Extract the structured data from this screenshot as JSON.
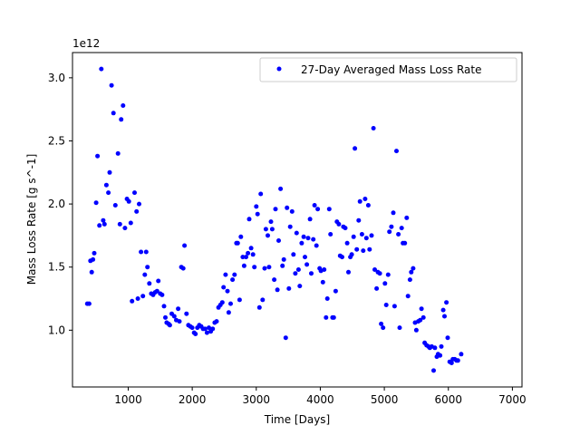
{
  "chart_data": {
    "type": "scatter",
    "xlabel": "Time [Days]",
    "ylabel": "Mass Loss Rate [g s^-1]",
    "y_offset_label": "1e12",
    "xlim": [
      130,
      7150
    ],
    "ylim": [
      0.55,
      3.2
    ],
    "xticks": [
      1000,
      2000,
      3000,
      4000,
      5000,
      6000,
      7000
    ],
    "xtick_labels": [
      "1000",
      "2000",
      "3000",
      "4000",
      "5000",
      "6000",
      "7000"
    ],
    "yticks": [
      1.0,
      1.5,
      2.0,
      2.5,
      3.0
    ],
    "ytick_labels": [
      "1.0",
      "1.5",
      "2.0",
      "2.5",
      "3.0"
    ],
    "grid": false,
    "legend_position": "upper-right",
    "series": [
      {
        "name": "27-Day Averaged Mass Loss Rate",
        "color": "#0000ff",
        "marker": "circle",
        "points": [
          [
            360,
            1.21
          ],
          [
            390,
            1.21
          ],
          [
            410,
            1.55
          ],
          [
            430,
            1.46
          ],
          [
            450,
            1.56
          ],
          [
            470,
            1.61
          ],
          [
            500,
            2.01
          ],
          [
            520,
            2.38
          ],
          [
            550,
            1.83
          ],
          [
            580,
            3.07
          ],
          [
            610,
            1.87
          ],
          [
            630,
            1.84
          ],
          [
            660,
            2.15
          ],
          [
            690,
            2.09
          ],
          [
            710,
            2.25
          ],
          [
            740,
            2.94
          ],
          [
            770,
            2.72
          ],
          [
            800,
            1.99
          ],
          [
            840,
            2.4
          ],
          [
            870,
            1.84
          ],
          [
            890,
            2.67
          ],
          [
            920,
            2.78
          ],
          [
            950,
            1.81
          ],
          [
            980,
            2.04
          ],
          [
            1010,
            2.02
          ],
          [
            1040,
            1.85
          ],
          [
            1060,
            1.23
          ],
          [
            1100,
            2.09
          ],
          [
            1130,
            1.94
          ],
          [
            1150,
            1.25
          ],
          [
            1170,
            2.0
          ],
          [
            1200,
            1.62
          ],
          [
            1230,
            1.27
          ],
          [
            1260,
            1.44
          ],
          [
            1280,
            1.62
          ],
          [
            1300,
            1.5
          ],
          [
            1330,
            1.37
          ],
          [
            1360,
            1.29
          ],
          [
            1390,
            1.28
          ],
          [
            1420,
            1.3
          ],
          [
            1450,
            1.31
          ],
          [
            1470,
            1.39
          ],
          [
            1500,
            1.29
          ],
          [
            1530,
            1.28
          ],
          [
            1560,
            1.19
          ],
          [
            1580,
            1.1
          ],
          [
            1600,
            1.06
          ],
          [
            1630,
            1.05
          ],
          [
            1650,
            1.04
          ],
          [
            1680,
            1.13
          ],
          [
            1720,
            1.11
          ],
          [
            1750,
            1.08
          ],
          [
            1780,
            1.17
          ],
          [
            1800,
            1.07
          ],
          [
            1830,
            1.5
          ],
          [
            1860,
            1.49
          ],
          [
            1880,
            1.67
          ],
          [
            1910,
            1.13
          ],
          [
            1940,
            1.04
          ],
          [
            1970,
            1.03
          ],
          [
            2000,
            1.02
          ],
          [
            2030,
            0.98
          ],
          [
            2050,
            0.97
          ],
          [
            2080,
            1.02
          ],
          [
            2110,
            1.04
          ],
          [
            2140,
            1.03
          ],
          [
            2170,
            1.01
          ],
          [
            2200,
            1.01
          ],
          [
            2230,
            0.98
          ],
          [
            2260,
            1.02
          ],
          [
            2290,
            0.99
          ],
          [
            2320,
            1.01
          ],
          [
            2350,
            1.06
          ],
          [
            2380,
            1.07
          ],
          [
            2410,
            1.18
          ],
          [
            2440,
            1.2
          ],
          [
            2470,
            1.22
          ],
          [
            2490,
            1.34
          ],
          [
            2520,
            1.44
          ],
          [
            2550,
            1.31
          ],
          [
            2570,
            1.14
          ],
          [
            2600,
            1.21
          ],
          [
            2630,
            1.4
          ],
          [
            2660,
            1.44
          ],
          [
            2690,
            1.69
          ],
          [
            2710,
            1.69
          ],
          [
            2740,
            1.24
          ],
          [
            2760,
            1.74
          ],
          [
            2790,
            1.58
          ],
          [
            2810,
            1.51
          ],
          [
            2840,
            1.58
          ],
          [
            2870,
            1.61
          ],
          [
            2890,
            1.88
          ],
          [
            2920,
            1.65
          ],
          [
            2950,
            1.6
          ],
          [
            2970,
            1.5
          ],
          [
            3000,
            1.98
          ],
          [
            3020,
            1.92
          ],
          [
            3050,
            1.18
          ],
          [
            3070,
            2.08
          ],
          [
            3100,
            1.24
          ],
          [
            3130,
            1.49
          ],
          [
            3150,
            1.8
          ],
          [
            3180,
            1.75
          ],
          [
            3200,
            1.5
          ],
          [
            3230,
            1.86
          ],
          [
            3250,
            1.8
          ],
          [
            3280,
            1.4
          ],
          [
            3300,
            1.96
          ],
          [
            3330,
            1.32
          ],
          [
            3350,
            1.71
          ],
          [
            3380,
            2.12
          ],
          [
            3410,
            1.51
          ],
          [
            3430,
            1.56
          ],
          [
            3460,
            0.94
          ],
          [
            3480,
            1.97
          ],
          [
            3510,
            1.33
          ],
          [
            3530,
            1.82
          ],
          [
            3560,
            1.94
          ],
          [
            3580,
            1.6
          ],
          [
            3610,
            1.45
          ],
          [
            3630,
            1.77
          ],
          [
            3660,
            1.48
          ],
          [
            3680,
            1.35
          ],
          [
            3710,
            1.69
          ],
          [
            3740,
            1.74
          ],
          [
            3760,
            1.58
          ],
          [
            3790,
            1.52
          ],
          [
            3810,
            1.73
          ],
          [
            3840,
            1.88
          ],
          [
            3860,
            1.45
          ],
          [
            3890,
            1.72
          ],
          [
            3910,
            1.99
          ],
          [
            3940,
            1.67
          ],
          [
            3960,
            1.96
          ],
          [
            3990,
            1.49
          ],
          [
            4010,
            1.47
          ],
          [
            4040,
            1.38
          ],
          [
            4060,
            1.48
          ],
          [
            4090,
            1.1
          ],
          [
            4110,
            1.25
          ],
          [
            4140,
            1.96
          ],
          [
            4160,
            1.76
          ],
          [
            4190,
            1.1
          ],
          [
            4210,
            1.1
          ],
          [
            4240,
            1.31
          ],
          [
            4260,
            1.86
          ],
          [
            4290,
            1.84
          ],
          [
            4310,
            1.59
          ],
          [
            4340,
            1.58
          ],
          [
            4360,
            1.82
          ],
          [
            4390,
            1.81
          ],
          [
            4420,
            1.69
          ],
          [
            4440,
            1.46
          ],
          [
            4470,
            1.58
          ],
          [
            4490,
            1.6
          ],
          [
            4520,
            1.74
          ],
          [
            4540,
            2.44
          ],
          [
            4570,
            1.64
          ],
          [
            4600,
            1.87
          ],
          [
            4620,
            2.02
          ],
          [
            4650,
            1.76
          ],
          [
            4670,
            1.63
          ],
          [
            4700,
            2.04
          ],
          [
            4720,
            1.73
          ],
          [
            4750,
            1.99
          ],
          [
            4770,
            1.64
          ],
          [
            4800,
            1.75
          ],
          [
            4830,
            2.6
          ],
          [
            4850,
            1.48
          ],
          [
            4880,
            1.33
          ],
          [
            4900,
            1.46
          ],
          [
            4930,
            1.45
          ],
          [
            4950,
            1.05
          ],
          [
            4980,
            1.02
          ],
          [
            5010,
            1.37
          ],
          [
            5030,
            1.2
          ],
          [
            5060,
            1.44
          ],
          [
            5080,
            1.78
          ],
          [
            5110,
            1.82
          ],
          [
            5140,
            1.93
          ],
          [
            5160,
            1.19
          ],
          [
            5190,
            2.42
          ],
          [
            5220,
            1.76
          ],
          [
            5240,
            1.02
          ],
          [
            5270,
            1.81
          ],
          [
            5290,
            1.69
          ],
          [
            5320,
            1.69
          ],
          [
            5350,
            1.89
          ],
          [
            5370,
            1.27
          ],
          [
            5400,
            1.4
          ],
          [
            5420,
            1.46
          ],
          [
            5450,
            1.49
          ],
          [
            5480,
            1.06
          ],
          [
            5500,
            1.0
          ],
          [
            5530,
            1.07
          ],
          [
            5560,
            1.08
          ],
          [
            5580,
            1.17
          ],
          [
            5610,
            1.1
          ],
          [
            5630,
            0.9
          ],
          [
            5660,
            0.88
          ],
          [
            5690,
            0.87
          ],
          [
            5710,
            0.86
          ],
          [
            5740,
            0.87
          ],
          [
            5770,
            0.68
          ],
          [
            5790,
            0.86
          ],
          [
            5820,
            0.79
          ],
          [
            5840,
            0.81
          ],
          [
            5870,
            0.8
          ],
          [
            5890,
            0.87
          ],
          [
            5920,
            1.16
          ],
          [
            5940,
            1.11
          ],
          [
            5970,
            1.22
          ],
          [
            5990,
            0.94
          ],
          [
            6020,
            0.75
          ],
          [
            6050,
            0.74
          ],
          [
            6070,
            0.77
          ],
          [
            6100,
            0.77
          ],
          [
            6130,
            0.76
          ],
          [
            6150,
            0.76
          ],
          [
            6200,
            0.81
          ]
        ]
      }
    ]
  }
}
